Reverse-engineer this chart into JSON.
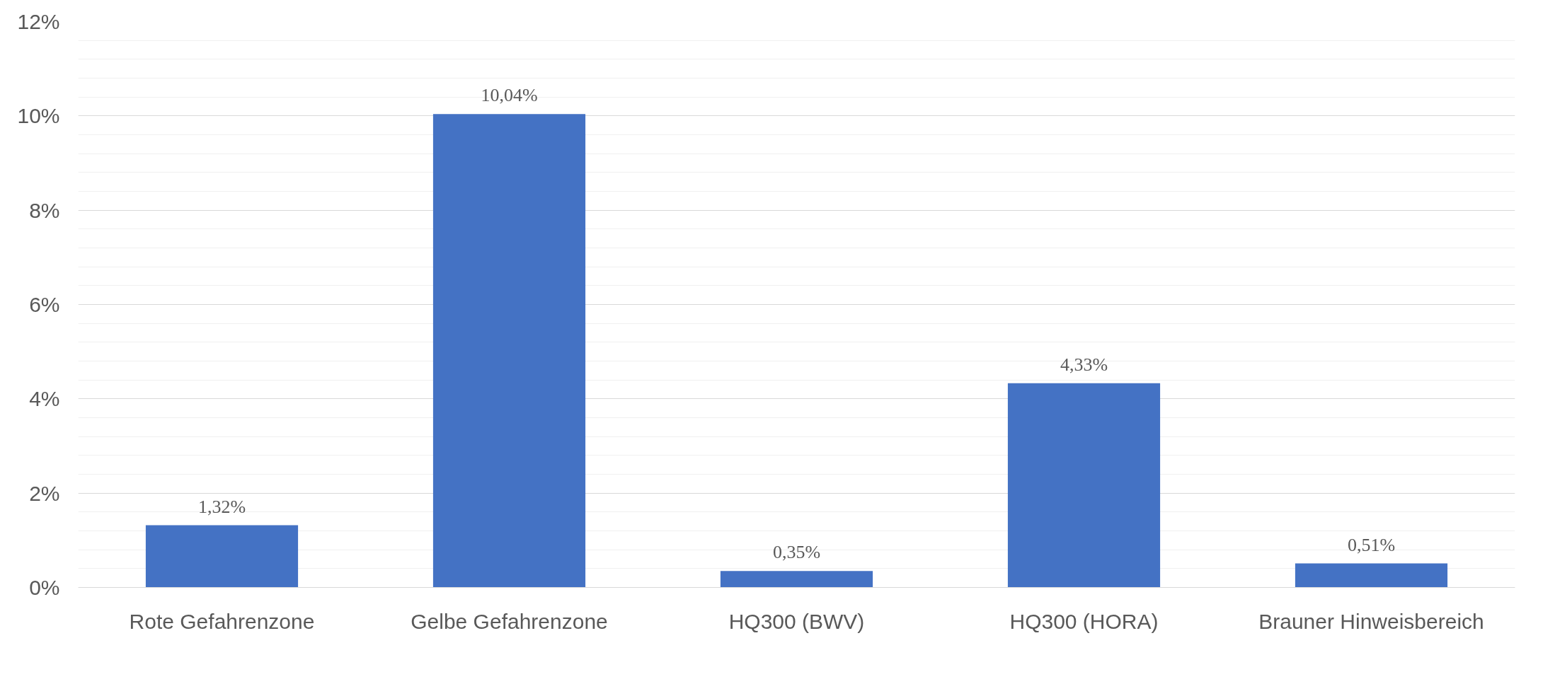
{
  "chart_data": {
    "type": "bar",
    "categories": [
      "Rote Gefahrenzone",
      "Gelbe Gefahrenzone",
      "HQ300 (BWV)",
      "HQ300 (HORA)",
      "Brauner Hinweisbereich"
    ],
    "values": [
      1.32,
      10.04,
      0.35,
      4.33,
      0.51
    ],
    "value_labels": [
      "1,32%",
      "10,04%",
      "0,35%",
      "4,33%",
      "0,51%"
    ],
    "color": "#4472c4",
    "ylim": [
      0,
      12
    ],
    "yticks": [
      {
        "value": 0,
        "label": "0%"
      },
      {
        "value": 2,
        "label": "2%"
      },
      {
        "value": 4,
        "label": "4%"
      },
      {
        "value": 6,
        "label": "6%"
      },
      {
        "value": 8,
        "label": "8%"
      },
      {
        "value": 10,
        "label": "10%"
      },
      {
        "value": 12,
        "label": "12%"
      }
    ],
    "grid": "y"
  }
}
